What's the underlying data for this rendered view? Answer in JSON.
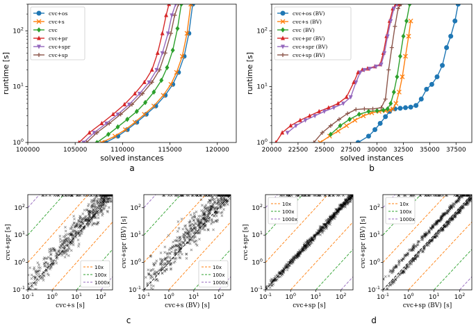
{
  "chart_data": [
    {
      "id": "a",
      "type": "line",
      "panel_label": "a",
      "xlabel": "solved instances",
      "ylabel": "runtime [s]",
      "xlim": [
        100000,
        122000
      ],
      "ylim": [
        1,
        300
      ],
      "yscale": "log",
      "xticks": [
        "100000",
        "105000",
        "110000",
        "115000",
        "120000"
      ],
      "yticks": [
        "10^0",
        "10^1",
        "10^2"
      ],
      "legend": "top-left",
      "series": [
        {
          "name": "cvc+os",
          "color": "#1f77b4",
          "marker": "circle",
          "x": [
            108200,
            109500,
            110500,
            111500,
            112500,
            113500,
            114500,
            115300,
            115900,
            116500,
            117000,
            117400
          ],
          "y": [
            1,
            1.3,
            1.7,
            2.3,
            3.2,
            4.5,
            7,
            11,
            18,
            35,
            90,
            300
          ]
        },
        {
          "name": "cvc+s",
          "color": "#ff7f0e",
          "marker": "x",
          "x": [
            107800,
            109200,
            110300,
            111300,
            112300,
            113300,
            114300,
            115100,
            115700,
            116300,
            116800,
            117200
          ],
          "y": [
            1,
            1.3,
            1.7,
            2.3,
            3.2,
            4.5,
            7,
            11,
            18,
            35,
            90,
            300
          ]
        },
        {
          "name": "cvc",
          "color": "#2ca02c",
          "marker": "diamond",
          "x": [
            107300,
            108500,
            109500,
            110500,
            111500,
            112400,
            113300,
            114100,
            114700,
            115300,
            115800,
            116200
          ],
          "y": [
            1,
            1.4,
            1.9,
            2.6,
            3.6,
            5.2,
            8,
            13,
            22,
            45,
            110,
            300
          ]
        },
        {
          "name": "cvc+pr",
          "color": "#d62728",
          "marker": "triangle-up",
          "x": [
            105400,
            106500,
            107800,
            109000,
            110200,
            111300,
            112300,
            113100,
            113700,
            114200,
            114600,
            114900
          ],
          "y": [
            1,
            1.5,
            2.2,
            3.2,
            4.8,
            7.5,
            12,
            20,
            40,
            90,
            190,
            300
          ]
        },
        {
          "name": "cvc+spr",
          "color": "#9467bd",
          "marker": "triangle-down",
          "x": [
            105900,
            107000,
            108300,
            109500,
            110700,
            111800,
            112800,
            113600,
            114200,
            114800,
            115200,
            115600
          ],
          "y": [
            1,
            1.5,
            2.2,
            3.2,
            4.8,
            7.5,
            12,
            20,
            40,
            90,
            190,
            300
          ]
        },
        {
          "name": "cvc+sp",
          "color": "#8c564b",
          "marker": "plus",
          "x": [
            106200,
            107300,
            108600,
            109800,
            111000,
            112100,
            113100,
            113900,
            114500,
            115100,
            115500,
            115900
          ],
          "y": [
            1,
            1.5,
            2.2,
            3.2,
            4.8,
            7.5,
            12,
            20,
            40,
            90,
            190,
            300
          ]
        }
      ]
    },
    {
      "id": "b",
      "type": "line",
      "panel_label": "b",
      "xlabel": "solved instances",
      "ylabel": "runtime [s]",
      "xlim": [
        20000,
        39000
      ],
      "ylim": [
        1,
        300
      ],
      "yscale": "log",
      "xticks": [
        "20000",
        "22500",
        "25000",
        "27500",
        "30000",
        "32500",
        "35000",
        "37500"
      ],
      "yticks": [
        "10^0",
        "10^1",
        "10^2"
      ],
      "legend": "top-left",
      "series": [
        {
          "name": "cvc+os (BV)",
          "color": "#1f77b4",
          "marker": "circle",
          "x": [
            28200,
            29200,
            29800,
            30300,
            30800,
            31200,
            31700,
            32200,
            32700,
            33200,
            33700,
            34200,
            34700,
            35200,
            35700,
            36200,
            36600,
            37000,
            37400,
            37700
          ],
          "y": [
            1,
            1.3,
            1.7,
            2.2,
            2.9,
            3.6,
            4,
            4.1,
            4.2,
            4.3,
            4.6,
            6,
            9,
            11,
            15,
            24,
            50,
            80,
            150,
            300
          ]
        },
        {
          "name": "cvc+s (BV)",
          "color": "#ff7f0e",
          "marker": "x",
          "x": [
            24600,
            25500,
            26300,
            27100,
            27900,
            28700,
            29500,
            30200,
            30800,
            31200,
            31500,
            31800,
            32100,
            32400,
            32700,
            33000,
            33200
          ],
          "y": [
            1,
            1.3,
            1.6,
            2,
            2.5,
            3,
            3.4,
            3.6,
            3.7,
            3.8,
            4,
            5,
            8,
            15,
            35,
            80,
            150
          ]
        },
        {
          "name": "cvc (BV)",
          "color": "#2ca02c",
          "marker": "diamond",
          "x": [
            25600,
            26500,
            27400,
            28300,
            29200,
            30000,
            30600,
            31000,
            31300,
            31600,
            31900,
            32200,
            32500,
            32800,
            33100
          ],
          "y": [
            1.4,
            2,
            2.6,
            3.2,
            3.6,
            3.7,
            3.8,
            4,
            5,
            8,
            15,
            35,
            80,
            150,
            300
          ]
        },
        {
          "name": "cvc+pr (BV)",
          "color": "#d62728",
          "marker": "triangle-up",
          "x": [
            20400,
            21000,
            21800,
            22700,
            23600,
            24500,
            25400,
            26300,
            27100,
            27800,
            28200,
            28600,
            29100,
            29800,
            30300,
            30600,
            30900,
            31200,
            31500,
            31800,
            32100
          ],
          "y": [
            1,
            1.5,
            2,
            2.5,
            3,
            3.6,
            4.2,
            5,
            6.5,
            12,
            18,
            20,
            21,
            23,
            25,
            40,
            80,
            150,
            250,
            300,
            300
          ]
        },
        {
          "name": "cvc+spr (BV)",
          "color": "#9467bd",
          "marker": "triangle-down",
          "x": [
            21500,
            22300,
            23200,
            24100,
            25000,
            25900,
            26800,
            27500,
            28000,
            28400,
            28800,
            29300,
            29900,
            30400,
            30700,
            31000,
            31300,
            31600,
            31900
          ],
          "y": [
            1.5,
            2,
            2.5,
            3,
            3.6,
            4.2,
            5,
            6.5,
            12,
            18,
            20,
            21,
            23,
            25,
            40,
            80,
            150,
            250,
            300
          ]
        },
        {
          "name": "cvc+sp (BV)",
          "color": "#8c564b",
          "marker": "plus",
          "x": [
            24000,
            24800,
            25600,
            26400,
            27200,
            28000,
            28800,
            29600,
            30400,
            30800,
            31100,
            31400,
            31700,
            32000,
            32300
          ],
          "y": [
            1,
            1.5,
            2,
            2.6,
            3.3,
            3.9,
            4,
            4,
            4.2,
            6,
            20,
            50,
            120,
            250,
            300
          ]
        }
      ]
    },
    {
      "id": "c1",
      "type": "scatter",
      "panel_label": "c",
      "xlabel": "cvc+s [s]",
      "ylabel": "cvc+spr [s]",
      "xlim": [
        0.1,
        300
      ],
      "ylim": [
        0.1,
        300
      ],
      "scale": "log",
      "ticks": [
        "10^-1",
        "10^0",
        "10^1",
        "10^2"
      ],
      "legend": "bottom-right",
      "reference_lines": [
        {
          "name": "10x",
          "color": "#ff7f0e"
        },
        {
          "name": "100x",
          "color": "#2ca02c"
        },
        {
          "name": "1000x",
          "color": "#9467bd"
        }
      ]
    },
    {
      "id": "c2",
      "type": "scatter",
      "xlabel": "cvc+s (BV) [s]",
      "ylabel": "cvc+spr (BV) [s]",
      "xlim": [
        0.1,
        300
      ],
      "ylim": [
        0.1,
        300
      ],
      "scale": "log",
      "ticks": [
        "10^-1",
        "10^0",
        "10^1",
        "10^2"
      ],
      "legend": "bottom-right",
      "reference_lines": [
        {
          "name": "10x",
          "color": "#ff7f0e"
        },
        {
          "name": "100x",
          "color": "#2ca02c"
        },
        {
          "name": "1000x",
          "color": "#9467bd"
        }
      ]
    },
    {
      "id": "d1",
      "type": "scatter",
      "panel_label": "d",
      "xlabel": "cvc+sp [s]",
      "ylabel": "cvc+spr [s]",
      "xlim": [
        0.1,
        300
      ],
      "ylim": [
        0.1,
        300
      ],
      "scale": "log",
      "ticks": [
        "10^-1",
        "10^0",
        "10^1",
        "10^2"
      ],
      "legend": "top-left",
      "reference_lines": [
        {
          "name": "10x",
          "color": "#ff7f0e"
        },
        {
          "name": "100x",
          "color": "#2ca02c"
        },
        {
          "name": "1000x",
          "color": "#9467bd"
        }
      ]
    },
    {
      "id": "d2",
      "type": "scatter",
      "xlabel": "cvc+sp (BV) [s]",
      "ylabel": "cvc+spr (BV) [s]",
      "xlim": [
        0.1,
        300
      ],
      "ylim": [
        0.1,
        300
      ],
      "scale": "log",
      "ticks": [
        "10^-1",
        "10^0",
        "10^1",
        "10^2"
      ],
      "legend": "top-left",
      "reference_lines": [
        {
          "name": "10x",
          "color": "#ff7f0e"
        },
        {
          "name": "100x",
          "color": "#2ca02c"
        },
        {
          "name": "1000x",
          "color": "#9467bd"
        }
      ]
    }
  ]
}
